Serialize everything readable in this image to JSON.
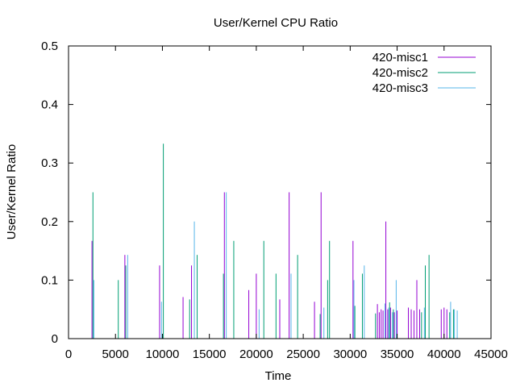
{
  "chart_data": {
    "type": "bar",
    "title": "User/Kernel CPU Ratio",
    "xlabel": "Time",
    "ylabel": "User/Kernel Ratio",
    "xlim": [
      0,
      45000
    ],
    "ylim": [
      0,
      0.5
    ],
    "xticks": [
      "0",
      "5000",
      "10000",
      "15000",
      "20000",
      "25000",
      "30000",
      "35000",
      "40000",
      "45000"
    ],
    "yticks": [
      "0",
      "0.1",
      "0.2",
      "0.3",
      "0.4",
      "0.5"
    ],
    "legend_position": "top-right",
    "grid": false,
    "series": [
      {
        "name": "420-misc1",
        "color": "#9400d3",
        "points": [
          [
            2500,
            0.167
          ],
          [
            6000,
            0.143
          ],
          [
            9700,
            0.125
          ],
          [
            12200,
            0.071
          ],
          [
            13100,
            0.125
          ],
          [
            16600,
            0.25
          ],
          [
            19200,
            0.083
          ],
          [
            20000,
            0.111
          ],
          [
            22500,
            0.067
          ],
          [
            23500,
            0.25
          ],
          [
            26200,
            0.063
          ],
          [
            26900,
            0.25
          ],
          [
            30300,
            0.167
          ],
          [
            32900,
            0.059
          ],
          [
            33100,
            0.045
          ],
          [
            33300,
            0.05
          ],
          [
            33500,
            0.048
          ],
          [
            33800,
            0.2
          ],
          [
            34000,
            0.05
          ],
          [
            34300,
            0.053
          ],
          [
            34700,
            0.045
          ],
          [
            35000,
            0.048
          ],
          [
            36200,
            0.053
          ],
          [
            36500,
            0.05
          ],
          [
            36800,
            0.048
          ],
          [
            37100,
            0.1
          ],
          [
            37400,
            0.05
          ],
          [
            39700,
            0.05
          ],
          [
            40000,
            0.053
          ],
          [
            40300,
            0.05
          ]
        ]
      },
      {
        "name": "420-misc2",
        "color": "#009e73",
        "points": [
          [
            2600,
            0.25
          ],
          [
            5300,
            0.1
          ],
          [
            6100,
            0.125
          ],
          [
            10100,
            0.333
          ],
          [
            12900,
            0.067
          ],
          [
            13700,
            0.143
          ],
          [
            16500,
            0.111
          ],
          [
            17600,
            0.167
          ],
          [
            20800,
            0.167
          ],
          [
            22100,
            0.111
          ],
          [
            24400,
            0.143
          ],
          [
            26800,
            0.042
          ],
          [
            27600,
            0.1
          ],
          [
            27800,
            0.167
          ],
          [
            30500,
            0.056
          ],
          [
            31300,
            0.111
          ],
          [
            32700,
            0.043
          ],
          [
            34200,
            0.062
          ],
          [
            34600,
            0.05
          ],
          [
            37600,
            0.045
          ],
          [
            38000,
            0.125
          ],
          [
            38400,
            0.143
          ],
          [
            40600,
            0.045
          ],
          [
            41000,
            0.05
          ]
        ]
      },
      {
        "name": "420-misc3",
        "color": "#56b4e9",
        "points": [
          [
            2700,
            0.1
          ],
          [
            6300,
            0.143
          ],
          [
            9900,
            0.063
          ],
          [
            13400,
            0.2
          ],
          [
            16800,
            0.25
          ],
          [
            20300,
            0.05
          ],
          [
            23700,
            0.111
          ],
          [
            27200,
            0.053
          ],
          [
            30400,
            0.1
          ],
          [
            31500,
            0.125
          ],
          [
            33700,
            0.06
          ],
          [
            34100,
            0.053
          ],
          [
            34500,
            0.045
          ],
          [
            34900,
            0.1
          ],
          [
            37900,
            0.053
          ],
          [
            40700,
            0.063
          ],
          [
            41100,
            0.05
          ],
          [
            41400,
            0.048
          ]
        ]
      }
    ]
  }
}
